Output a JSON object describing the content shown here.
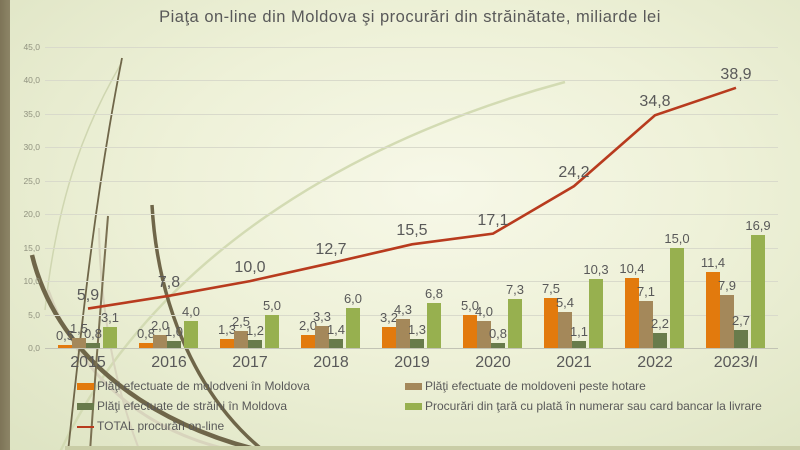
{
  "slide": {
    "title": "Piaţa on-line din Moldova şi procurări din străinătate, miliarde lei"
  },
  "chart_data": {
    "type": "combo (clustered bar + line)",
    "title": "Piaţa on-line din Moldova şi procurări din străinătate, miliarde lei",
    "categories": [
      "2015",
      "2016",
      "2017",
      "2018",
      "2019",
      "2020",
      "2021",
      "2022",
      "2023/I"
    ],
    "bar_series": [
      {
        "name": "Plăţi efectuate de molodveni în Moldova",
        "color": "#e27a0d",
        "values": [
          0.5,
          0.8,
          1.3,
          2.0,
          3.2,
          5.0,
          7.5,
          10.4,
          11.4
        ],
        "labels": [
          "0,5",
          "0,8",
          "1,3",
          "2,0",
          "3,2",
          "5,0",
          "7,5",
          "10,4",
          "11,4"
        ]
      },
      {
        "name": "Plăţi efectuate de moldoveni peste hotare",
        "color": "#a4885a",
        "values": [
          1.5,
          2.0,
          2.5,
          3.3,
          4.3,
          4.0,
          5.4,
          7.1,
          7.9
        ],
        "labels": [
          "1,5",
          "2,0",
          "2,5",
          "3,3",
          "4,3",
          "4,0",
          "5,4",
          "7,1",
          "7,9"
        ]
      },
      {
        "name": "Plăţi efectuate de străini în Moldova",
        "color": "#687b4b",
        "values": [
          0.8,
          1.0,
          1.2,
          1.4,
          1.3,
          0.8,
          1.1,
          2.2,
          2.7
        ],
        "labels": [
          "0,8",
          "1,0",
          "1,2",
          "1,4",
          "1,3",
          "0,8",
          "1,1",
          "2,2",
          "2,7"
        ]
      },
      {
        "name": "Procurări din ţară cu plată în numerar sau card bancar la livrare",
        "color": "#97b04f",
        "values": [
          3.1,
          4.0,
          5.0,
          6.0,
          6.8,
          7.3,
          10.3,
          15.0,
          16.9
        ],
        "labels": [
          "3,1",
          "4,0",
          "5,0",
          "6,0",
          "6,8",
          "7,3",
          "10,3",
          "15,0",
          "16,9"
        ]
      }
    ],
    "line_series": {
      "name": "TOTAL procurări on-line",
      "color": "#b83b1e",
      "values": [
        5.9,
        7.8,
        10.0,
        12.7,
        15.5,
        17.1,
        24.2,
        34.8,
        38.9
      ],
      "labels": [
        "5,9",
        "7,8",
        "10,0",
        "12,7",
        "15,5",
        "17,1",
        "24,2",
        "34,8",
        "38,9"
      ]
    },
    "y_axis": {
      "min": 0,
      "max": 45,
      "step": 5,
      "tick_labels": [
        "45,0",
        "40,0",
        "35,0",
        "30,0",
        "25,0",
        "20,0",
        "15,0",
        "10,0",
        "5,0",
        "0,0"
      ],
      "tick_values": [
        45,
        40,
        35,
        30,
        25,
        20,
        15,
        10,
        5,
        0
      ]
    },
    "grid": true,
    "legend_position": "bottom, two columns",
    "decimal_separator": ",",
    "value_label_color": "#595959"
  },
  "legend": {
    "left_column": [
      {
        "label": "Plăţi efectuate de molodveni în Moldova",
        "swatch": "bar",
        "color": "#e27a0d"
      },
      {
        "label": "Plăţi efectuate de străini în Moldova",
        "swatch": "bar",
        "color": "#687b4b"
      },
      {
        "label": "TOTAL procurări on-line",
        "swatch": "line",
        "color": "#b83b1e"
      }
    ],
    "right_column": [
      {
        "label": "Plăţi efectuate de moldoveni peste hotare",
        "swatch": "bar",
        "color": "#a4885a"
      },
      {
        "label": "Procurări din ţară cu plată în numerar sau card bancar la livrare",
        "swatch": "bar",
        "color": "#97b04f"
      }
    ]
  },
  "theme": {
    "background_center": "#f7f8e8",
    "background_edge": "#dde3c2",
    "accent_bar": "#857c5f",
    "deco_dark": "#6f6649",
    "deco_light": "#d8d4bd",
    "deco_green": "#d3dbb3",
    "gridline": "#d9dacb",
    "text_gray": "#595959"
  }
}
